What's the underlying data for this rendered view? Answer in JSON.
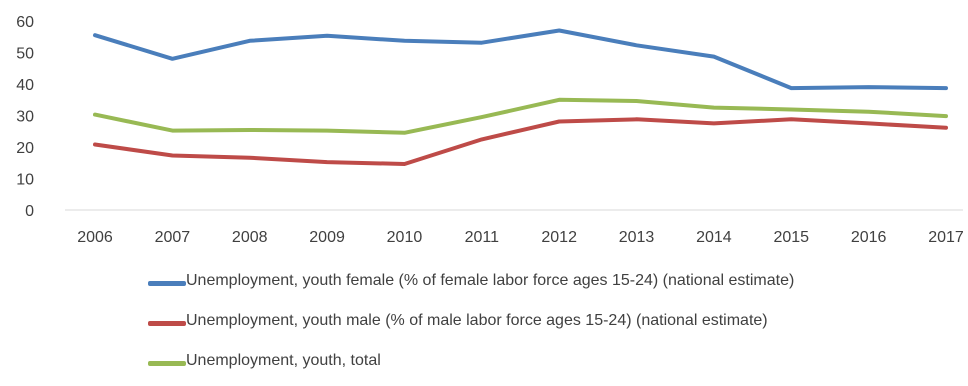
{
  "chart_data": {
    "type": "line",
    "title": "",
    "xlabel": "",
    "ylabel": "",
    "categories": [
      "2006",
      "2007",
      "2008",
      "2009",
      "2010",
      "2011",
      "2012",
      "2013",
      "2014",
      "2015",
      "2016",
      "2017"
    ],
    "ylim": [
      0,
      60
    ],
    "yticks": [
      0,
      10,
      20,
      30,
      40,
      50,
      60
    ],
    "grid": false,
    "legend_position": "bottom",
    "series": [
      {
        "name": "Unemployment, youth female (% of female labor force ages 15-24) (national estimate)",
        "color": "#4a7ebb",
        "values": [
          55.5,
          48,
          53.7,
          55.3,
          53.7,
          53.1,
          57,
          52.3,
          48.7,
          38.7,
          39,
          38.7
        ]
      },
      {
        "name": "Unemployment, youth male (% of male labor force ages 15-24) (national estimate)",
        "color": "#be4b48",
        "values": [
          20.8,
          17.3,
          16.6,
          15.2,
          14.6,
          22.4,
          28.1,
          28.8,
          27.5,
          28.8,
          27.5,
          26.1
        ]
      },
      {
        "name": "Unemployment, youth, total",
        "color": "#98b954",
        "values": [
          30.3,
          25.2,
          25.4,
          25.2,
          24.5,
          29.5,
          35,
          34.6,
          32.5,
          31.9,
          31.2,
          29.8
        ]
      }
    ]
  }
}
